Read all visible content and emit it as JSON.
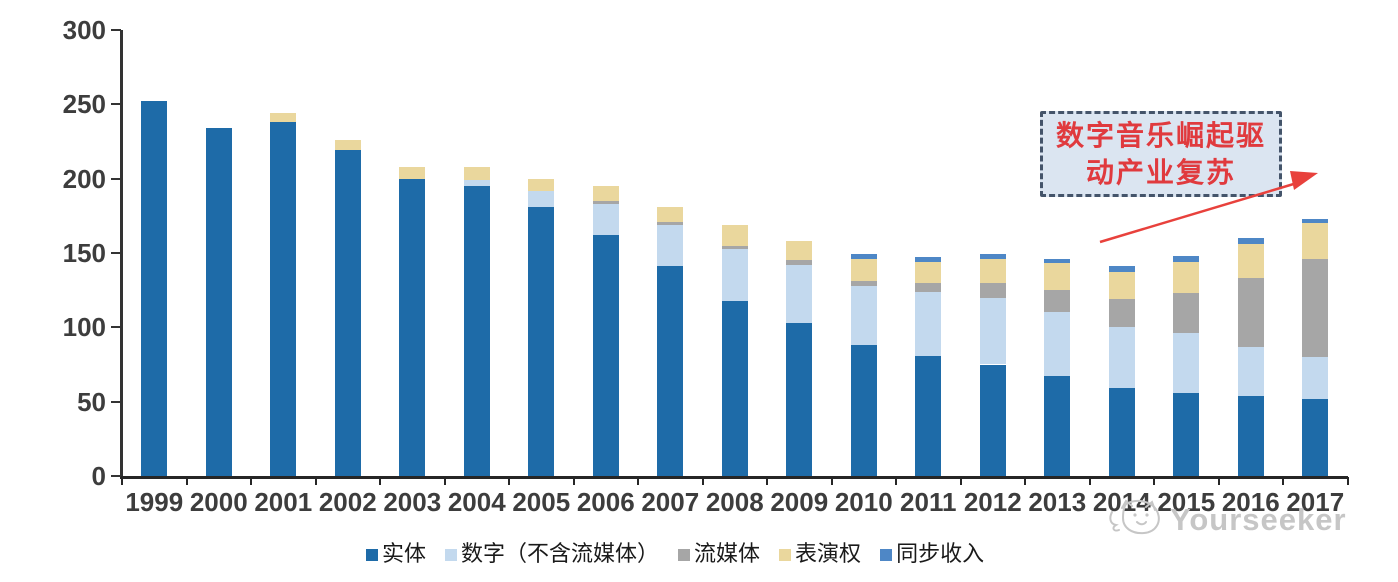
{
  "chart_data": {
    "type": "bar",
    "stacked": true,
    "title": "",
    "xlabel": "",
    "ylabel": "",
    "ylim": [
      0,
      300
    ],
    "yticks": [
      300,
      250,
      200,
      150,
      100,
      50,
      0
    ],
    "grid": false,
    "legend_position": "bottom",
    "categories": [
      "1999",
      "2000",
      "2001",
      "2002",
      "2003",
      "2004",
      "2005",
      "2006",
      "2007",
      "2008",
      "2009",
      "2010",
      "2011",
      "2012",
      "2013",
      "2014",
      "2015",
      "2016",
      "2017"
    ],
    "series": [
      {
        "name": "实体",
        "color": "#1E6BA8",
        "values": [
          252,
          234,
          238,
          219,
          200,
          195,
          181,
          162,
          141,
          118,
          103,
          88,
          81,
          75,
          67,
          59,
          56,
          54,
          52
        ]
      },
      {
        "name": "数字（不含流媒体）",
        "color": "#C3D9EE",
        "values": [
          0,
          0,
          0,
          0,
          0,
          4,
          11,
          21,
          28,
          35,
          39,
          40,
          43,
          45,
          43,
          41,
          40,
          33,
          28
        ]
      },
      {
        "name": "流媒体",
        "color": "#A6A6A6",
        "values": [
          0,
          0,
          0,
          0,
          0,
          0,
          0,
          2,
          2,
          2,
          3,
          3,
          6,
          10,
          15,
          19,
          27,
          46,
          66
        ]
      },
      {
        "name": "表演权",
        "color": "#EAD79D",
        "values": [
          0,
          0,
          6,
          7,
          8,
          9,
          8,
          10,
          10,
          14,
          13,
          15,
          14,
          16,
          18,
          18,
          21,
          23,
          24
        ]
      },
      {
        "name": "同步收入",
        "color": "#4E87C6",
        "values": [
          0,
          0,
          0,
          0,
          0,
          0,
          0,
          0,
          0,
          0,
          0,
          3,
          3,
          3,
          3,
          4,
          4,
          4,
          3
        ]
      }
    ]
  },
  "annotation": {
    "line1": "数字音乐崛起驱",
    "line2": "动产业复苏",
    "text_color": "#e03a3e",
    "box_fill": "#dbe5f1",
    "box_border": "#44546a",
    "arrow_color": "#e8413c"
  },
  "watermark": {
    "text": "Yourseeker",
    "logo": "cat-logo",
    "color": "#c6c6c6"
  },
  "axis": {
    "color": "#333333",
    "label_color": "#3d3d3d"
  }
}
